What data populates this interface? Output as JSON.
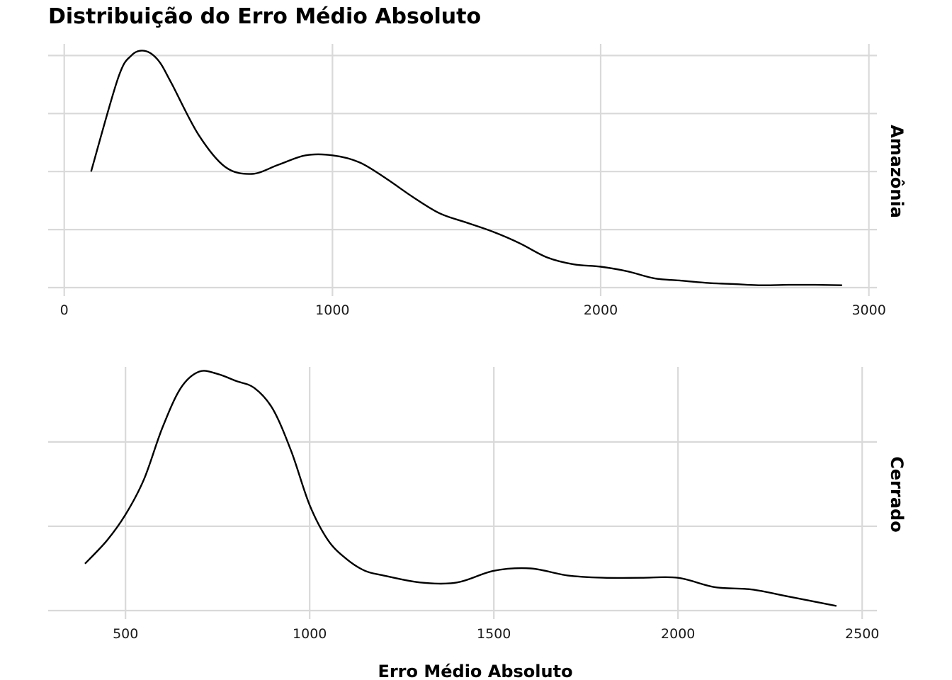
{
  "chart_data": {
    "type": "line",
    "title": "Distribuição do Erro Médio Absoluto",
    "xlabel": "Erro Médio Absoluto",
    "ylabel": "",
    "layout": "faceted vertically, independent x scales, facet labels on right",
    "grid": true,
    "y_tick_labels_shown": false,
    "facets": [
      {
        "name": "Amazônia",
        "xlim": [
          -60,
          3030
        ],
        "ylim": [
          0,
          1.05
        ],
        "x_ticks": [
          0,
          1000,
          2000,
          3000
        ],
        "x_tick_labels": [
          "0",
          "1000",
          "2000",
          "3000"
        ],
        "y_grid": [
          0,
          0.25,
          0.5,
          0.75,
          1.0
        ],
        "x": [
          100,
          200,
          250,
          300,
          350,
          400,
          500,
          600,
          700,
          800,
          900,
          1000,
          1100,
          1200,
          1300,
          1400,
          1500,
          1600,
          1700,
          1800,
          1900,
          2000,
          2100,
          2200,
          2300,
          2400,
          2500,
          2600,
          2700,
          2800,
          2900
        ],
        "values": [
          0.5,
          0.9,
          1.0,
          1.02,
          0.98,
          0.88,
          0.66,
          0.52,
          0.49,
          0.53,
          0.57,
          0.57,
          0.54,
          0.47,
          0.39,
          0.32,
          0.28,
          0.24,
          0.19,
          0.13,
          0.1,
          0.09,
          0.07,
          0.04,
          0.03,
          0.02,
          0.015,
          0.01,
          0.012,
          0.012,
          0.01
        ]
      },
      {
        "name": "Cerrado",
        "xlim": [
          290,
          2540
        ],
        "ylim": [
          0,
          1.04
        ],
        "x_ticks": [
          500,
          1000,
          1500,
          2000,
          2500
        ],
        "x_tick_labels": [
          "500",
          "1000",
          "1500",
          "2000",
          "2500"
        ],
        "y_grid": [
          0,
          0.36,
          0.72
        ],
        "x": [
          390,
          450,
          500,
          550,
          600,
          650,
          700,
          750,
          800,
          850,
          900,
          950,
          1000,
          1050,
          1100,
          1150,
          1200,
          1300,
          1400,
          1500,
          1600,
          1700,
          1800,
          1900,
          2000,
          2100,
          2200,
          2300,
          2430
        ],
        "values": [
          0.2,
          0.3,
          0.41,
          0.56,
          0.78,
          0.95,
          1.02,
          1.01,
          0.98,
          0.95,
          0.86,
          0.68,
          0.45,
          0.3,
          0.22,
          0.17,
          0.15,
          0.12,
          0.12,
          0.17,
          0.18,
          0.15,
          0.14,
          0.14,
          0.14,
          0.1,
          0.09,
          0.06,
          0.02
        ]
      }
    ]
  }
}
